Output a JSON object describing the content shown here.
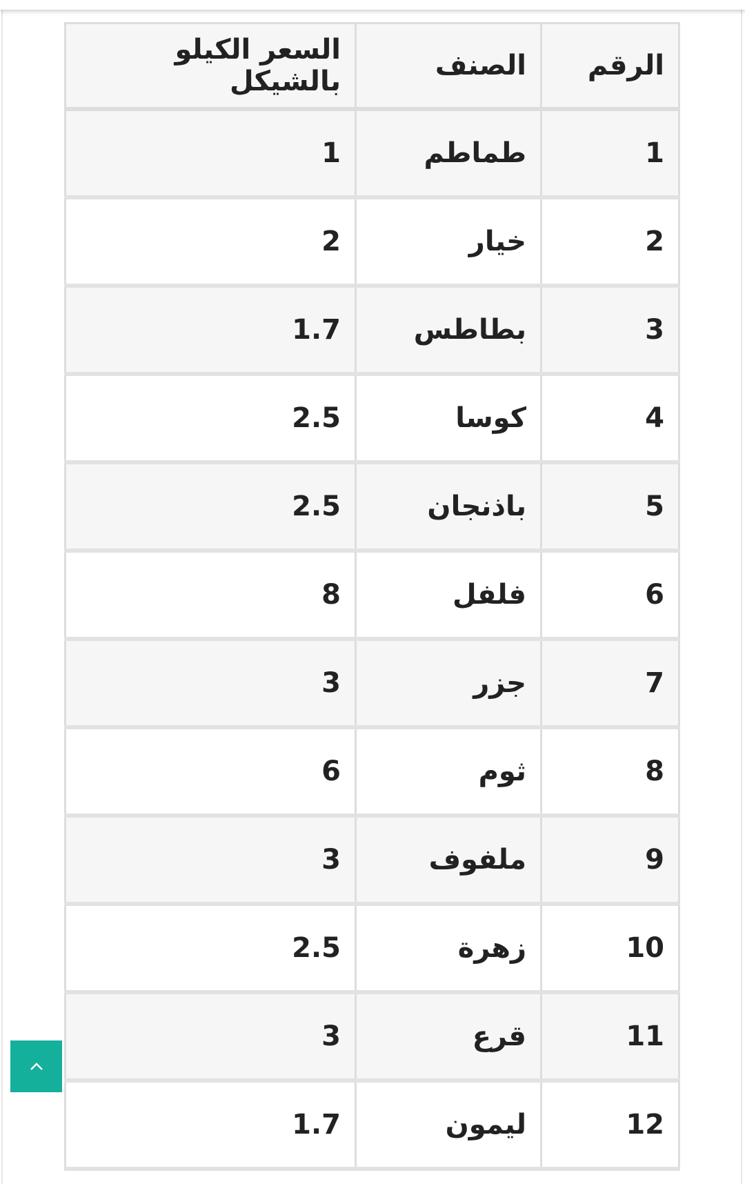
{
  "table": {
    "headers": [
      "الرقم",
      "الصنف",
      "السعر الكيلو بالشيكل"
    ],
    "rows": [
      [
        "1",
        "طماطم",
        "1"
      ],
      [
        "2",
        "خيار",
        "2"
      ],
      [
        "3",
        "بطاطس",
        "1.7"
      ],
      [
        "4",
        "كوسا",
        "2.5"
      ],
      [
        "5",
        "باذنجان",
        "2.5"
      ],
      [
        "6",
        "فلفل",
        "8"
      ],
      [
        "7",
        "جزر",
        "3"
      ],
      [
        "8",
        "ثوم",
        "6"
      ],
      [
        "9",
        "ملفوف",
        "3"
      ],
      [
        "10",
        "زهرة",
        "2.5"
      ],
      [
        "11",
        "قرع",
        "3"
      ],
      [
        "12",
        "ليمون",
        "1.7"
      ]
    ]
  },
  "scroll_top_button": {
    "icon": "chevron-up-icon",
    "color": "#14b09c"
  }
}
